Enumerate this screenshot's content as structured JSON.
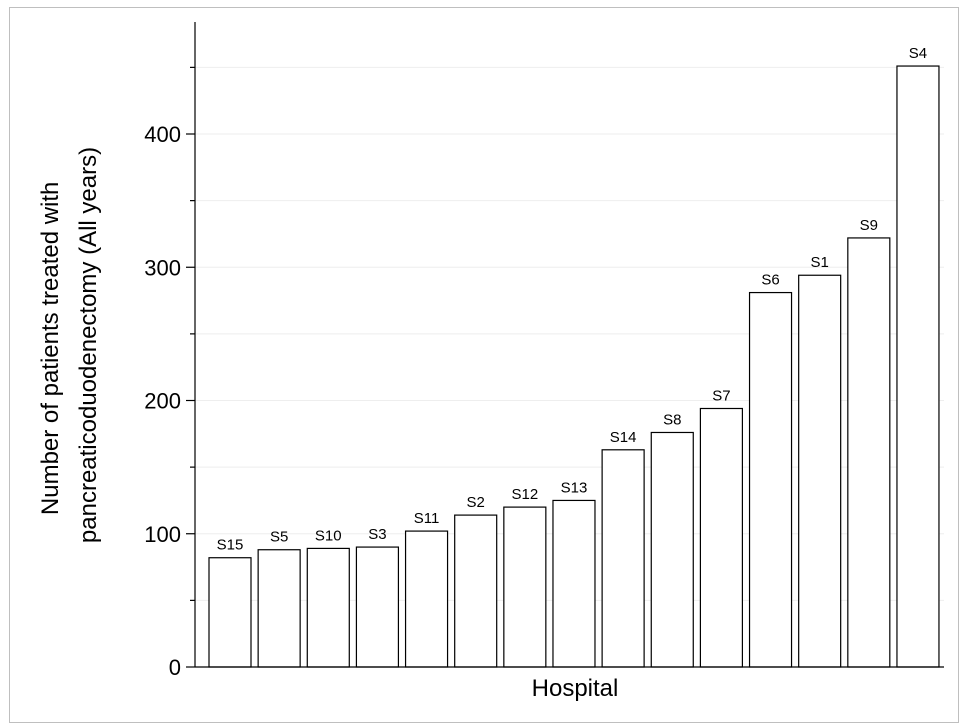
{
  "chart_data": {
    "type": "bar",
    "categories": [
      "S15",
      "S5",
      "S10",
      "S3",
      "S11",
      "S2",
      "S12",
      "S13",
      "S14",
      "S8",
      "S7",
      "S6",
      "S1",
      "S9",
      "S4"
    ],
    "values": [
      82,
      88,
      89,
      90,
      102,
      114,
      120,
      125,
      163,
      176,
      194,
      281,
      294,
      322,
      451
    ],
    "xlabel": "Hospital",
    "ylabel_lines": [
      "Number of patients treated with",
      "pancreaticoduodenectomy (All years)"
    ],
    "ylim": [
      0,
      480
    ],
    "yticks": [
      0,
      100,
      200,
      300,
      400
    ],
    "grid": true,
    "colors": {
      "bar_fill": "#ffffff",
      "bar_stroke": "#000000",
      "grid": "#eeeeee"
    }
  }
}
